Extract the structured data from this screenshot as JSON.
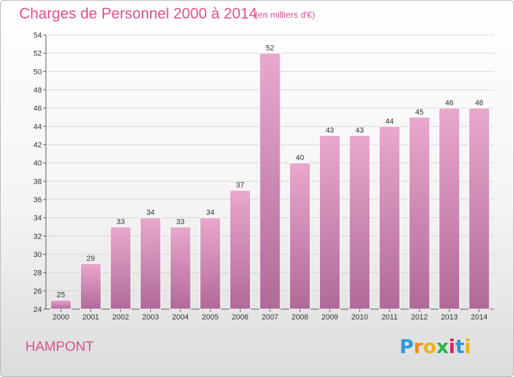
{
  "title": "Charges de Personnel 2000 à 2014",
  "subtitle": "(en milliers d'€)",
  "commune": "HAMPONT",
  "logo": {
    "letters": [
      "P",
      "r",
      "o",
      "x",
      "i",
      "t",
      "i"
    ]
  },
  "colors": {
    "title": "#e2508f",
    "bar_top": "#e9a8ce",
    "bar_bottom": "#b06a98",
    "grid": "#d6d6d6"
  },
  "chart_data": {
    "type": "bar",
    "categories": [
      "2000",
      "2001",
      "2002",
      "2003",
      "2004",
      "2005",
      "2006",
      "2007",
      "2008",
      "2009",
      "2010",
      "2011",
      "2012",
      "2013",
      "2014"
    ],
    "values": [
      25,
      29,
      33,
      34,
      33,
      34,
      37,
      52,
      40,
      43,
      43,
      44,
      45,
      46,
      46
    ],
    "title": "Charges de Personnel 2000 à 2014",
    "xlabel": "",
    "ylabel": "",
    "ylim": [
      24,
      54
    ],
    "yticks": [
      24,
      26,
      28,
      30,
      32,
      34,
      36,
      38,
      40,
      42,
      44,
      46,
      48,
      50,
      52,
      54
    ],
    "grid": true
  }
}
